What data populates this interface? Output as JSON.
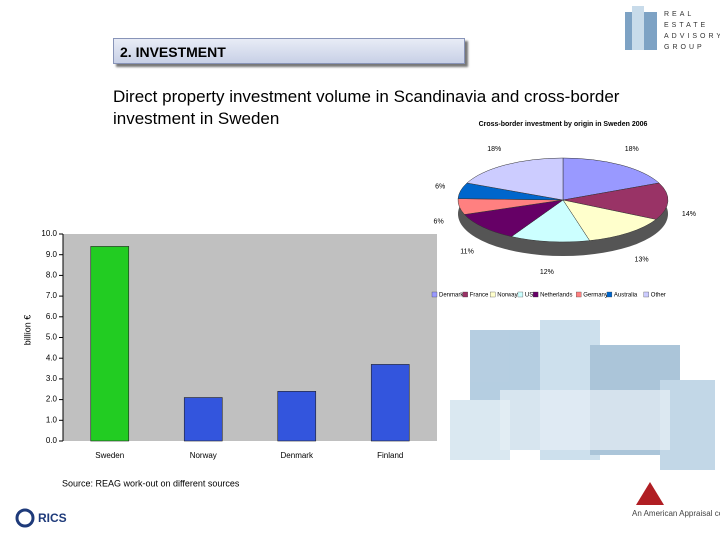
{
  "slide": {
    "section": "2. INVESTMENT",
    "title": "Direct property investment volume in Scandinavia and cross-border investment in Sweden",
    "source": "Source: REAG work-out on different sources",
    "logo_lines": [
      "REAL",
      "ESTATE",
      "ADVISORY",
      "GROUP"
    ],
    "footer_left": "RICS",
    "footer_right": "An American Appraisal company"
  },
  "chart_data": [
    {
      "type": "bar",
      "ylabel": "billion €",
      "categories": [
        "Sweden",
        "Norway",
        "Denmark",
        "Finland"
      ],
      "values": [
        9.4,
        2.1,
        2.4,
        3.7
      ],
      "colors": [
        "#22cc22",
        "#3355dd",
        "#3355dd",
        "#3355dd"
      ],
      "ylim": [
        0,
        10
      ],
      "yticks": [
        {
          "value": 0,
          "label": "0.0"
        },
        {
          "value": 1,
          "label": "1.0"
        },
        {
          "value": 2,
          "label": "2.0"
        },
        {
          "value": 3,
          "label": "3.0"
        },
        {
          "value": 4,
          "label": "4.0"
        },
        {
          "value": 5,
          "label": "5.0"
        },
        {
          "value": 6,
          "label": "6.0"
        },
        {
          "value": 7,
          "label": "7.0"
        },
        {
          "value": 8,
          "label": "8.0"
        },
        {
          "value": 9,
          "label": "9.0"
        },
        {
          "value": 10,
          "label": "10.0"
        }
      ],
      "grid": false
    },
    {
      "type": "pie",
      "title": "Cross-border investment by origin in Sweden 2006",
      "categories": [
        "Denmark",
        "France",
        "Norway",
        "US",
        "Netherlands",
        "Germany",
        "Australia",
        "Other"
      ],
      "values": [
        18,
        14,
        13,
        12,
        11,
        6,
        6,
        18
      ],
      "value_labels": [
        "18%",
        "14%",
        "13%",
        "12%",
        "11%",
        "6%",
        "6%",
        "18%"
      ],
      "colors": [
        "#9999ff",
        "#993366",
        "#ffffcc",
        "#ccffff",
        "#660066",
        "#ff8080",
        "#0066cc",
        "#ccccff"
      ],
      "legend": "bottom"
    }
  ]
}
